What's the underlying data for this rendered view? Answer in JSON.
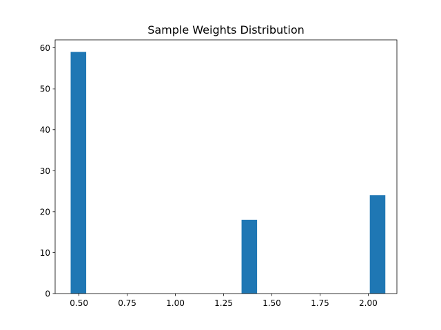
{
  "chart_data": {
    "type": "bar",
    "title": "Sample Weights Distribution",
    "xlabel": "",
    "ylabel": "",
    "xlim": [
      0.3763,
      2.1487
    ],
    "ylim": [
      0,
      61.95
    ],
    "x_ticks": [
      0.5,
      0.75,
      1.0,
      1.25,
      1.5,
      1.75,
      2.0
    ],
    "x_tick_labels": [
      "0.50",
      "0.75",
      "1.00",
      "1.25",
      "1.50",
      "1.75",
      "2.00"
    ],
    "y_ticks": [
      0,
      10,
      20,
      30,
      40,
      50,
      60
    ],
    "y_tick_labels": [
      "0",
      "10",
      "20",
      "30",
      "40",
      "50",
      "60"
    ],
    "bar_color": "#1f77b4",
    "grid": false,
    "bars": [
      {
        "x_start": 0.4568,
        "x_end": 0.5374,
        "value": 59
      },
      {
        "x_start": 1.3431,
        "x_end": 1.4237,
        "value": 18
      },
      {
        "x_start": 2.0082,
        "x_end": 2.0888,
        "value": 24
      }
    ]
  }
}
